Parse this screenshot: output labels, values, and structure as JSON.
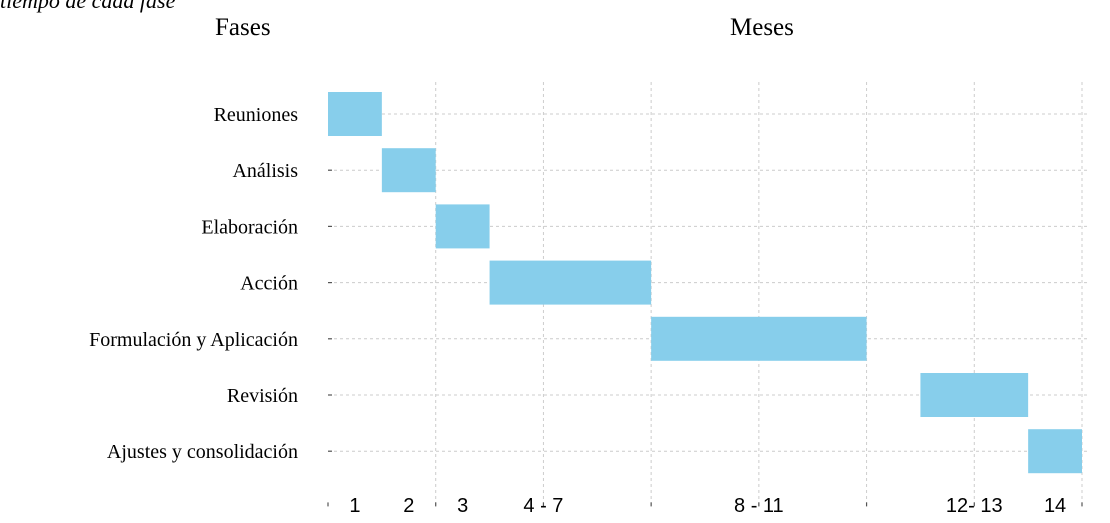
{
  "caption": "tiempo de cada fase",
  "headers": {
    "phases": "Fases",
    "months": "Meses"
  },
  "chart_data": {
    "type": "gantt",
    "x_unit": "meses",
    "xlim": [
      0,
      14
    ],
    "grid": true,
    "bar_color": "#87ceeb",
    "grid_color": "#cccccc",
    "tasks": [
      {
        "label": "Reuniones",
        "start": 0,
        "end": 1
      },
      {
        "label": "Análisis",
        "start": 1,
        "end": 2
      },
      {
        "label": "Elaboración",
        "start": 2,
        "end": 3
      },
      {
        "label": "Acción",
        "start": 3,
        "end": 6
      },
      {
        "label": "Formulación y Aplicación",
        "start": 6,
        "end": 10
      },
      {
        "label": "Revisión",
        "start": 11,
        "end": 13
      },
      {
        "label": "Ajustes y consolidación",
        "start": 13,
        "end": 14
      }
    ],
    "x_tick_labels": [
      {
        "text": "1",
        "at": 0.5
      },
      {
        "text": "2",
        "at": 1.5
      },
      {
        "text": "3",
        "at": 2.5
      },
      {
        "text": "4 - 7",
        "at": 4
      },
      {
        "text": "8 - 11",
        "at": 8
      },
      {
        "text": "12- 13",
        "at": 12
      },
      {
        "text": "14",
        "at": 13.5
      }
    ]
  }
}
